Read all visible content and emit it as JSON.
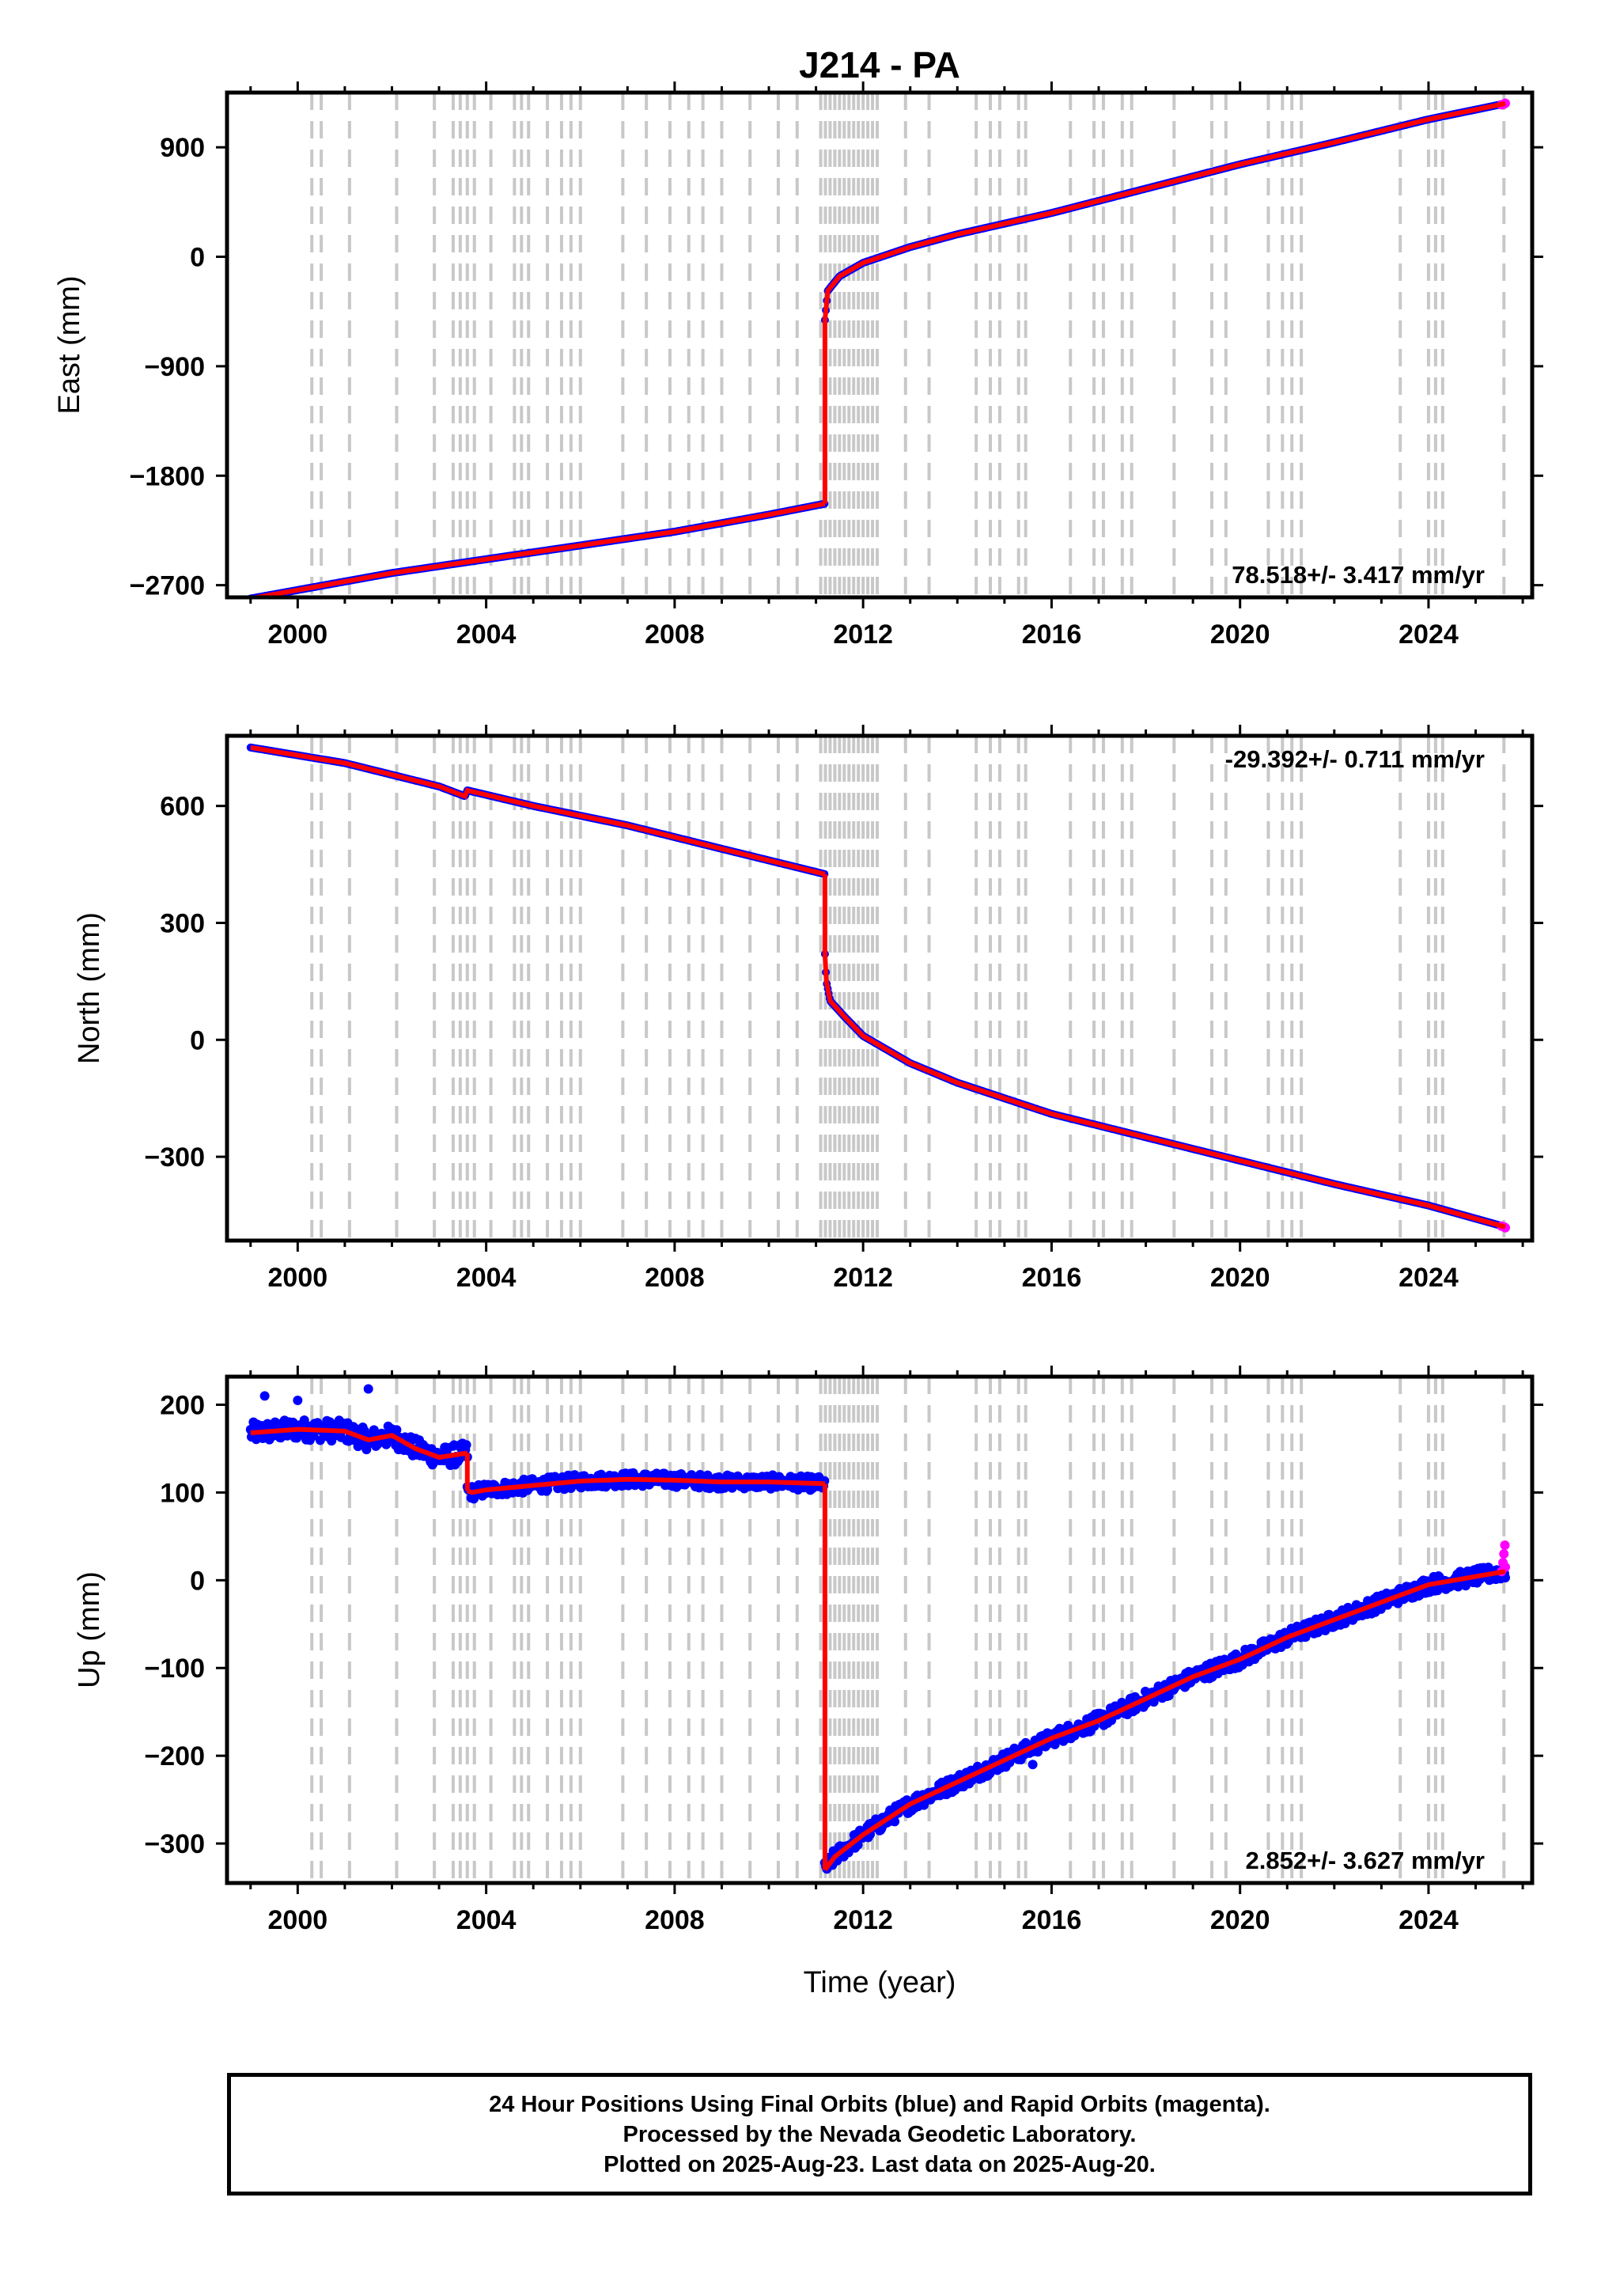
{
  "title": "J214 - PA",
  "colors": {
    "final_orbits": "#0000ff",
    "rapid_orbits": "#ff00ff",
    "model": "#ff0000",
    "event_lines": "#c8c8c8",
    "frame": "#000000"
  },
  "x_label": "Time (year)",
  "footer": {
    "line1": "24 Hour Positions Using Final Orbits (blue) and Rapid Orbits (magenta).",
    "line2": "Processed by the Nevada Geodetic Laboratory.",
    "line3": "Plotted on 2025-Aug-23. Last data on 2025-Aug-20."
  },
  "chart_data": [
    {
      "type": "scatter",
      "component": "East",
      "ylabel": "East (mm)",
      "xlim": [
        1998.5,
        2026.2
      ],
      "ylim": [
        -2800,
        1350
      ],
      "x_ticks": [
        2000,
        2004,
        2008,
        2012,
        2016,
        2020,
        2024
      ],
      "y_ticks": [
        -2700,
        -1800,
        -900,
        0,
        900
      ],
      "rate_text": "78.518+/- 3.417 mm/yr",
      "rate_position": "bottom-right",
      "segments": [
        {
          "name": "pre-2011",
          "x": [
            1999.0,
            2002.0,
            2005.0,
            2008.0,
            2010.0,
            2011.19
          ],
          "y": [
            -2810,
            -2600,
            -2430,
            -2260,
            -2120,
            -2030
          ]
        },
        {
          "name": "post-2011",
          "x": [
            2011.19,
            2011.25,
            2011.5,
            2012.0,
            2013.0,
            2014.0,
            2016.0,
            2018.0,
            2020.0,
            2022.0,
            2024.0,
            2025.63
          ],
          "y": [
            -520,
            -280,
            -160,
            -50,
            80,
            185,
            360,
            560,
            760,
            940,
            1130,
            1260
          ]
        }
      ],
      "event_years": [
        2000.3,
        2000.5,
        2001.1,
        2002.1,
        2002.9,
        2003.3,
        2003.45,
        2003.6,
        2003.75,
        2004.1,
        2004.6,
        2004.75,
        2004.9,
        2005.3,
        2005.6,
        2005.8,
        2006.0,
        2006.9,
        2007.4,
        2007.9,
        2008.3,
        2008.6,
        2009.0,
        2009.6,
        2010.2,
        2010.6,
        2011.1,
        2011.2,
        2011.3,
        2011.4,
        2011.5,
        2011.6,
        2011.7,
        2011.8,
        2011.9,
        2012.0,
        2012.1,
        2012.2,
        2012.3,
        2012.9,
        2013.4,
        2014.4,
        2014.7,
        2014.9,
        2015.3,
        2015.45,
        2016.4,
        2016.9,
        2017.1,
        2017.5,
        2017.7,
        2018.6,
        2019.4,
        2019.7,
        2020.6,
        2020.9,
        2021.1,
        2021.3,
        2023.4,
        2024.0,
        2024.15,
        2024.3,
        2025.6
      ],
      "rapid_points": {
        "x": [
          2025.55,
          2025.6,
          2025.63
        ],
        "y": [
          1250,
          1255,
          1262
        ]
      }
    },
    {
      "type": "scatter",
      "component": "North",
      "ylabel": "North (mm)",
      "xlim": [
        1998.5,
        2026.2
      ],
      "ylim": [
        -515,
        780
      ],
      "x_ticks": [
        2000,
        2004,
        2008,
        2012,
        2016,
        2020,
        2024
      ],
      "y_ticks": [
        -300,
        0,
        300,
        600
      ],
      "rate_text": "-29.392+/- 0.711 mm/yr",
      "rate_position": "top-right",
      "segments": [
        {
          "name": "pre-2011",
          "x": [
            1999.0,
            2001.0,
            2003.0,
            2003.55,
            2003.6,
            2005.0,
            2007.0,
            2009.0,
            2011.19
          ],
          "y": [
            750,
            710,
            650,
            625,
            640,
            600,
            550,
            490,
            425
          ]
        },
        {
          "name": "post-2011",
          "x": [
            2011.19,
            2011.22,
            2011.3,
            2011.6,
            2012.0,
            2013.0,
            2014.0,
            2016.0,
            2018.0,
            2020.0,
            2022.0,
            2024.0,
            2025.63
          ],
          "y": [
            220,
            150,
            100,
            60,
            10,
            -60,
            -110,
            -190,
            -250,
            -310,
            -370,
            -425,
            -480
          ]
        }
      ],
      "event_years": [
        2000.3,
        2000.5,
        2001.1,
        2002.1,
        2002.9,
        2003.3,
        2003.45,
        2003.6,
        2003.75,
        2004.1,
        2004.6,
        2004.75,
        2004.9,
        2005.3,
        2005.6,
        2005.8,
        2006.0,
        2006.9,
        2007.4,
        2007.9,
        2008.3,
        2008.6,
        2009.0,
        2009.6,
        2010.2,
        2010.6,
        2011.1,
        2011.2,
        2011.3,
        2011.4,
        2011.5,
        2011.6,
        2011.7,
        2011.8,
        2011.9,
        2012.0,
        2012.1,
        2012.2,
        2012.3,
        2012.9,
        2013.4,
        2014.4,
        2014.7,
        2014.9,
        2015.3,
        2015.45,
        2016.4,
        2016.9,
        2017.1,
        2017.5,
        2017.7,
        2018.6,
        2019.4,
        2019.7,
        2020.6,
        2020.9,
        2021.1,
        2021.3,
        2023.4,
        2024.0,
        2024.15,
        2024.3,
        2025.6
      ],
      "rapid_points": {
        "x": [
          2025.55,
          2025.6,
          2025.63
        ],
        "y": [
          -478,
          -480,
          -482
        ]
      }
    },
    {
      "type": "scatter",
      "component": "Up",
      "ylabel": "Up (mm)",
      "xlim": [
        1998.5,
        2026.2
      ],
      "ylim": [
        -345,
        232
      ],
      "x_ticks": [
        2000,
        2004,
        2008,
        2012,
        2016,
        2020,
        2024
      ],
      "y_ticks": [
        -300,
        -200,
        -100,
        0,
        100,
        200
      ],
      "rate_text": "2.852+/- 3.627 mm/yr",
      "rate_position": "bottom-right",
      "segments": [
        {
          "name": "1999-2003",
          "x": [
            1999.0,
            2000.0,
            2001.0,
            2001.5,
            2002.0,
            2002.5,
            2003.0,
            2003.6
          ],
          "y": [
            168,
            172,
            170,
            160,
            165,
            150,
            140,
            145
          ],
          "scatter": 12
        },
        {
          "name": "2003-2011",
          "x": [
            2003.6,
            2003.7,
            2004.0,
            2005.0,
            2006.0,
            2007.0,
            2008.0,
            2009.0,
            2010.0,
            2011.19
          ],
          "y": [
            102,
            100,
            103,
            108,
            113,
            115,
            114,
            112,
            112,
            110
          ],
          "scatter": 8
        },
        {
          "name": "post-2011",
          "x": [
            2011.19,
            2011.4,
            2012.0,
            2013.0,
            2014.0,
            2015.0,
            2016.0,
            2017.0,
            2018.0,
            2019.0,
            2020.0,
            2021.0,
            2022.0,
            2023.0,
            2024.0,
            2025.63
          ],
          "y": [
            -330,
            -315,
            -290,
            -255,
            -230,
            -205,
            -180,
            -160,
            -135,
            -110,
            -90,
            -65,
            -45,
            -25,
            -5,
            10
          ],
          "scatter": 9
        }
      ],
      "outliers": {
        "x": [
          1999.3,
          2000.0,
          2001.5,
          2015.6
        ],
        "y": [
          210,
          205,
          218,
          -210
        ]
      },
      "event_years": [
        2000.3,
        2000.5,
        2001.1,
        2002.1,
        2002.9,
        2003.3,
        2003.45,
        2003.6,
        2003.75,
        2004.1,
        2004.6,
        2004.75,
        2004.9,
        2005.3,
        2005.6,
        2005.8,
        2006.0,
        2006.9,
        2007.4,
        2007.9,
        2008.3,
        2008.6,
        2009.0,
        2009.6,
        2010.2,
        2010.6,
        2011.1,
        2011.2,
        2011.3,
        2011.4,
        2011.5,
        2011.6,
        2011.7,
        2011.8,
        2011.9,
        2012.0,
        2012.1,
        2012.2,
        2012.3,
        2012.9,
        2013.4,
        2014.4,
        2014.7,
        2014.9,
        2015.3,
        2015.45,
        2016.4,
        2016.9,
        2017.1,
        2017.5,
        2017.7,
        2018.6,
        2019.4,
        2019.7,
        2020.6,
        2020.9,
        2021.1,
        2021.3,
        2023.4,
        2024.0,
        2024.15,
        2024.3,
        2025.6
      ],
      "rapid_points": {
        "x": [
          2025.55,
          2025.58,
          2025.6,
          2025.62,
          2025.63
        ],
        "y": [
          10,
          20,
          30,
          40,
          15
        ]
      }
    }
  ]
}
